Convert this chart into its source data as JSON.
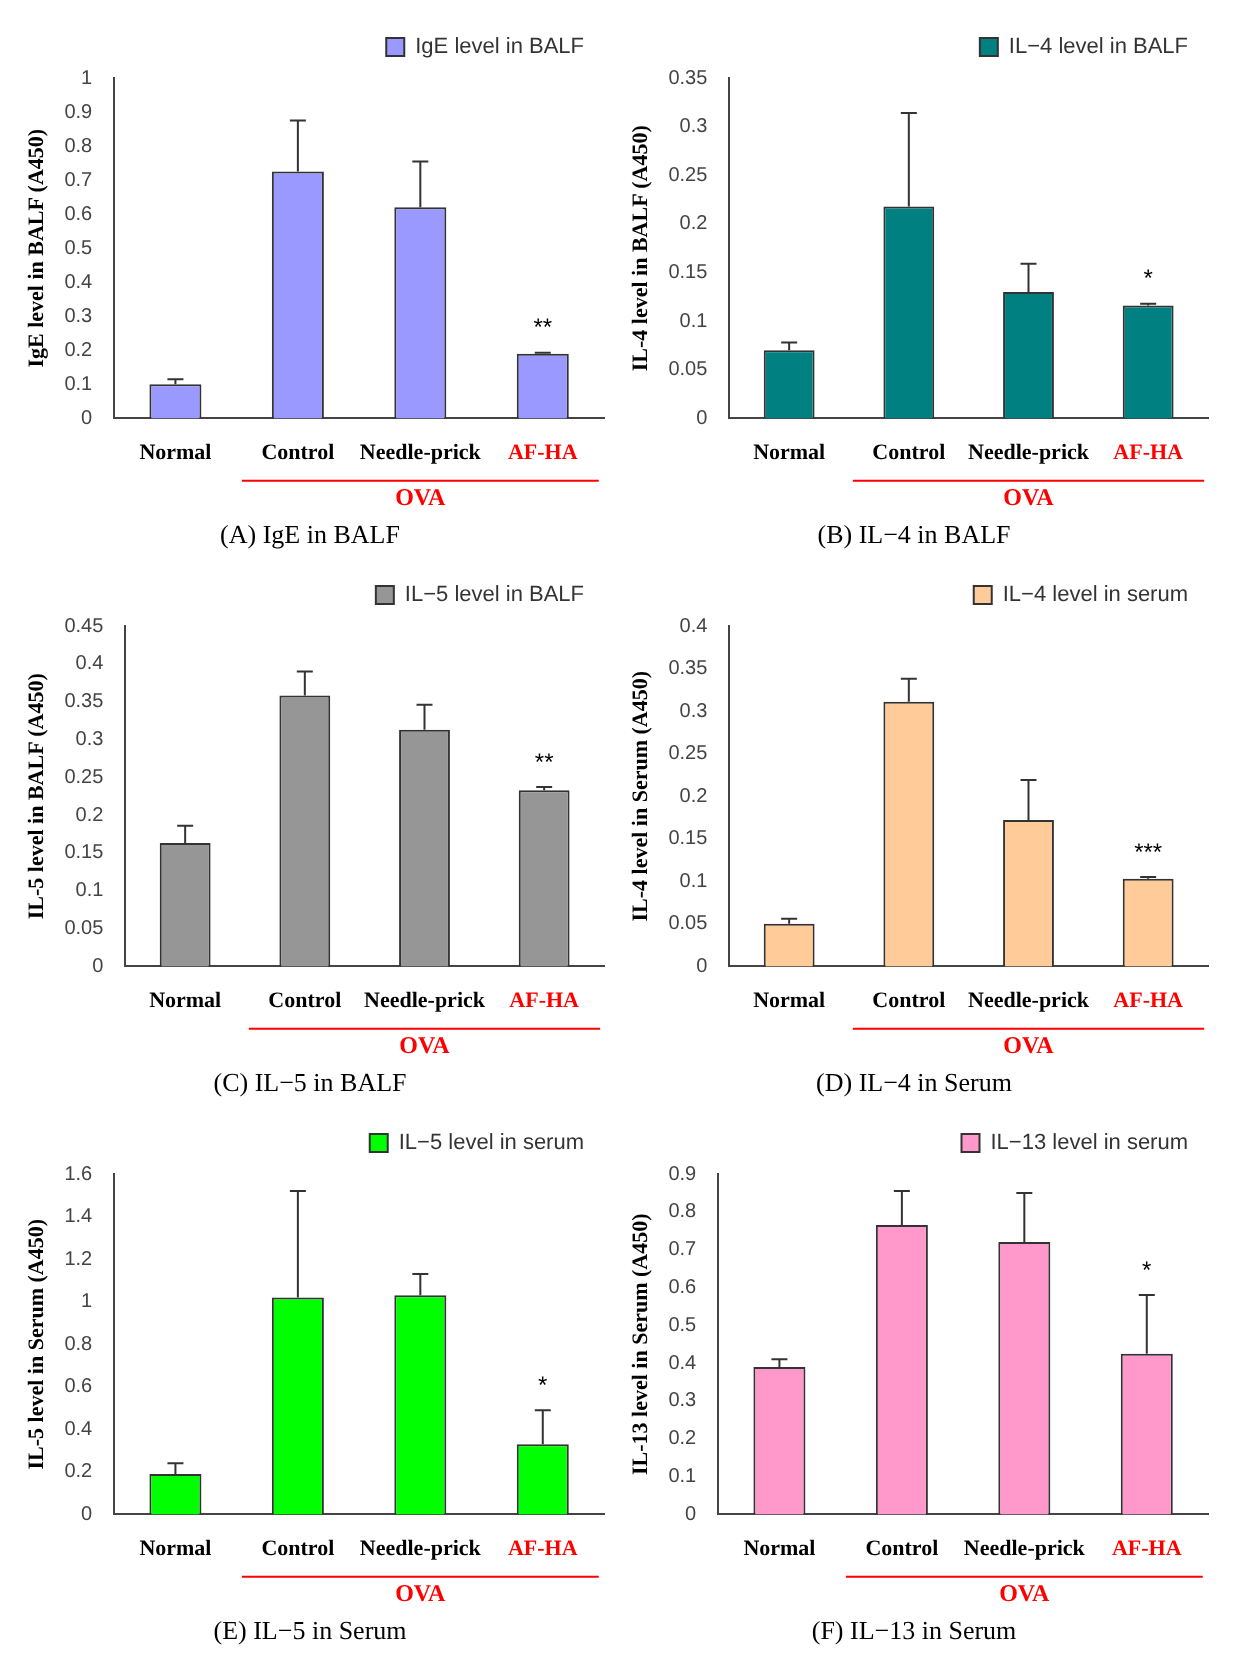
{
  "chart_data": [
    {
      "type": "bar",
      "title": "(A) IgE in BALF",
      "ylabel": "IgE level in BALF (A450)",
      "categories": [
        "Normal",
        "Control",
        "Needle-prick",
        "AF-HA"
      ],
      "series": [
        {
          "name": "IgE level in BALF",
          "color": "#9999ff",
          "values": [
            0.1,
            0.725,
            0.62,
            0.19
          ],
          "errors": [
            [
              0.1,
              0.115
            ],
            [
              0.725,
              0.875
            ],
            [
              0.62,
              0.755
            ],
            [
              0.19,
              0.193
            ]
          ]
        }
      ],
      "ylim": [
        0,
        1
      ],
      "yticks": [
        0,
        0.1,
        0.2,
        0.3,
        0.4,
        0.5,
        0.6,
        0.7,
        0.8,
        0.9,
        1
      ],
      "legend": "top right",
      "annotations": [
        "**",
        "OVA"
      ]
    },
    {
      "type": "bar",
      "title": "(B) IL−4 in BALF",
      "ylabel": "IL-4 level in BALF (A450)",
      "categories": [
        "Normal",
        "Control",
        "Needle-prick",
        "AF-HA"
      ],
      "series": [
        {
          "name": "IL−4 level in BALF",
          "color": "#008080",
          "values": [
            0.07,
            0.218,
            0.13,
            0.116
          ],
          "errors": [
            [
              0.07,
              0.078
            ],
            [
              0.218,
              0.314
            ],
            [
              0.13,
              0.159
            ],
            [
              0.116,
              0.118
            ]
          ]
        }
      ],
      "ylim": [
        0,
        0.35
      ],
      "yticks": [
        0,
        0.05,
        0.1,
        0.15,
        0.2,
        0.25,
        0.3,
        0.35
      ],
      "legend": "top right",
      "annotations": [
        "*",
        "OVA"
      ]
    },
    {
      "type": "bar",
      "title": "(C) IL−5 in BALF",
      "ylabel": "IL-5 level in BALF (A450)",
      "categories": [
        "Normal",
        "Control",
        "Needle-prick",
        "AF-HA"
      ],
      "series": [
        {
          "name": "IL−5 level in BALF",
          "color": "#969696",
          "values": [
            0.163,
            0.358,
            0.313,
            0.233
          ],
          "errors": [
            [
              0.163,
              0.186
            ],
            [
              0.358,
              0.39
            ],
            [
              0.313,
              0.346
            ],
            [
              0.233,
              0.237
            ]
          ]
        }
      ],
      "ylim": [
        0,
        0.45
      ],
      "yticks": [
        0,
        0.05,
        0.1,
        0.15,
        0.2,
        0.25,
        0.3,
        0.35,
        0.4,
        0.45
      ],
      "legend": "top right",
      "annotations": [
        "**",
        "OVA"
      ]
    },
    {
      "type": "bar",
      "title": "(D) IL−4 in Serum",
      "ylabel": "IL-4 level in Serum (A450)",
      "categories": [
        "Normal",
        "Control",
        "Needle-prick",
        "AF-HA"
      ],
      "series": [
        {
          "name": "IL−4 level in serum",
          "color": "#ffcc99",
          "values": [
            0.05,
            0.311,
            0.172,
            0.103
          ],
          "errors": [
            [
              0.05,
              0.056
            ],
            [
              0.311,
              0.338
            ],
            [
              0.172,
              0.219
            ],
            [
              0.103,
              0.105
            ]
          ]
        }
      ],
      "ylim": [
        0,
        0.4
      ],
      "yticks": [
        0,
        0.05,
        0.1,
        0.15,
        0.2,
        0.25,
        0.3,
        0.35,
        0.4
      ],
      "legend": "top right",
      "annotations": [
        "***",
        "OVA"
      ]
    },
    {
      "type": "bar",
      "title": "(E) IL−5 in Serum",
      "ylabel": "IL-5 level in Serum (A450)",
      "categories": [
        "Normal",
        "Control",
        "Needle-prick",
        "AF-HA"
      ],
      "series": [
        {
          "name": "IL−5 level in serum",
          "color": "#00ff00",
          "values": [
            0.19,
            1.02,
            1.03,
            0.33
          ],
          "errors": [
            [
              0.19,
              0.24
            ],
            [
              1.02,
              1.52
            ],
            [
              1.03,
              1.13
            ],
            [
              0.33,
              0.49
            ]
          ]
        }
      ],
      "ylim": [
        0,
        1.6
      ],
      "yticks": [
        0,
        0.2,
        0.4,
        0.6,
        0.8,
        1,
        1.2,
        1.4,
        1.6
      ],
      "legend": "top right",
      "annotations": [
        "*",
        "OVA"
      ]
    },
    {
      "type": "bar",
      "title": "(F) IL−13 in Serum",
      "ylabel": "IL-13 level in Serum (A450)",
      "categories": [
        "Normal",
        "Control",
        "Needle-prick",
        "AF-HA"
      ],
      "series": [
        {
          "name": "IL−13 level in serum",
          "color": "#ff99cc",
          "values": [
            0.39,
            0.765,
            0.72,
            0.425
          ],
          "errors": [
            [
              0.39,
              0.41
            ],
            [
              0.765,
              0.855
            ],
            [
              0.72,
              0.85
            ],
            [
              0.425,
              0.58
            ]
          ]
        }
      ],
      "ylim": [
        0,
        0.9
      ],
      "yticks": [
        0,
        0.1,
        0.2,
        0.3,
        0.4,
        0.5,
        0.6,
        0.7,
        0.8,
        0.9
      ],
      "legend": "top right",
      "annotations": [
        "*",
        "OVA"
      ]
    }
  ]
}
